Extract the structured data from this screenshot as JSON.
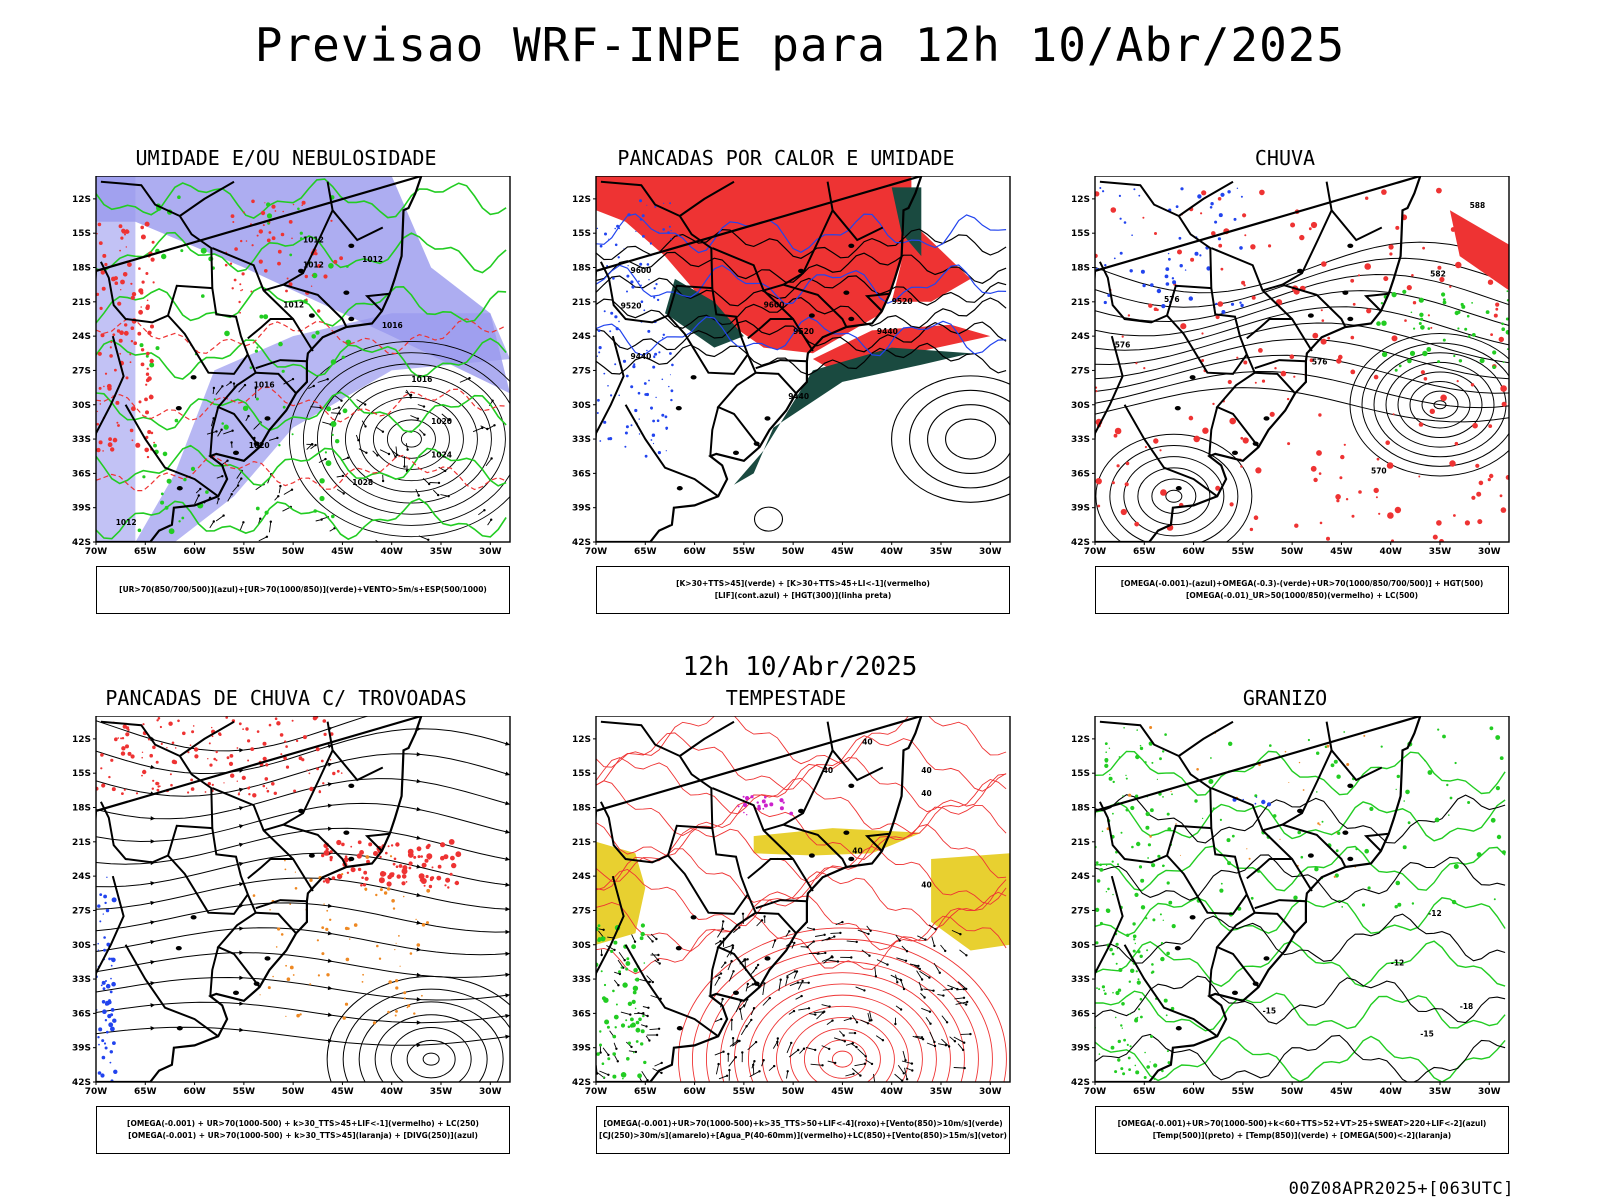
{
  "main_title": "Previsao WRF-INPE  para 12h 10/Abr/2025",
  "mid_title": "12h 10/Abr/2025",
  "footer": "00Z08APR2025+[063UTC]",
  "axes": {
    "lat_labels": [
      "12S",
      "15S",
      "18S",
      "21S",
      "24S",
      "27S",
      "30S",
      "33S",
      "36S",
      "39S",
      "42S"
    ],
    "lon_labels": [
      "70W",
      "65W",
      "60W",
      "55W",
      "50W",
      "45W",
      "40W",
      "35W",
      "30W"
    ]
  },
  "colors": {
    "purple_fill": "#9999ee",
    "green": "#22cc22",
    "red": "#ee3333",
    "dark_green": "#1a4a40",
    "blue": "#2244ee",
    "yellow": "#e8d030",
    "orange": "#ee8822",
    "magenta": "#cc22cc"
  },
  "panels": [
    {
      "title": "UMIDADE E/OU NEBULOSIDADE",
      "legend": [
        "[UR>70(850/700/500)](azul)+[UR>70(1000/850)](verde)+VENTO>5m/s+ESP(500/1000)"
      ],
      "contour_labels": [
        "1012",
        "1012",
        "1012",
        "1012",
        "1016",
        "1016",
        "1020",
        "1020",
        "1024",
        "1028",
        "1012",
        "1016"
      ]
    },
    {
      "title": "PANCADAS POR CALOR E UMIDADE",
      "legend": [
        "[K>30+TTS>45](verde) + [K>30+TTS>45+LI<-1](vermelho)",
        "[LIF](cont.azul) + [HGT(300)](linha preta)"
      ],
      "contour_labels": [
        "9600",
        "9600",
        "9520",
        "9520",
        "9520",
        "9440",
        "9440",
        "9440"
      ]
    },
    {
      "title": "CHUVA",
      "legend": [
        "[OMEGA(-0.001)-(azul)+OMEGA(-0.3)-(verde)+UR>70(1000/850/700/500)] + HGT(500)",
        "[OMEGA(-0.01)_UR>50(1000/850)(vermelho) + LC(500)"
      ],
      "contour_labels": [
        "588",
        "582",
        "576",
        "576",
        "576",
        "570"
      ]
    },
    {
      "title": "PANCADAS DE CHUVA C/ TROVOADAS",
      "legend": [
        "[OMEGA(-0.001) + UR>70(1000-500) + k>30_TTS>45+LIF<-1](vermelho) + LC(250)",
        "[OMEGA(-0.001) + UR>70(1000-500) + k>30_TTS>45](laranja) + [DIVG(250)](azul)"
      ],
      "contour_labels": []
    },
    {
      "title": "TEMPESTADE",
      "legend": [
        "[OMEGA(-0.001)+UR>70(1000-500)+k>35_TTS>50+LIF<-4](roxo)+[Vento(850)>10m/s](verde)",
        "[CJ(250)>30m/s](amarelo)+[Agua_P(40-60mm)](vermelho)+LC(850)+[Vento(850)>15m/s](vetor)"
      ],
      "contour_labels": [
        "40",
        "40",
        "40",
        "40",
        "40",
        "40"
      ]
    },
    {
      "title": "GRANIZO",
      "legend": [
        "[OMEGA(-0.001)+UR>70(1000-500)+k<60+TTS>52+VT>25+SWEAT>220+LIF<-2](azul)",
        "[Temp(500)](preto) + [Temp(850)](verde) + [OMEGA(500)<-2](laranja)"
      ],
      "contour_labels": [
        "-12",
        "-12",
        "-15",
        "-15",
        "-18"
      ]
    }
  ]
}
